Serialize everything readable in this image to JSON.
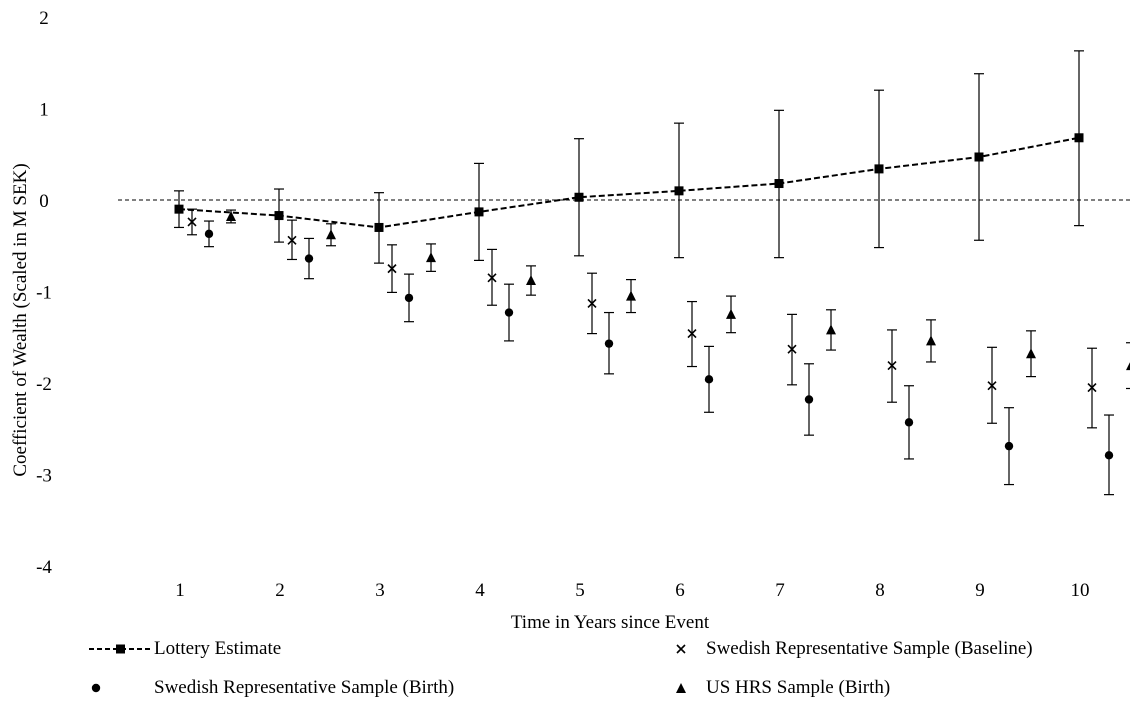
{
  "chart_data": {
    "type": "scatter",
    "xlabel": "Time in Years since Event",
    "ylabel": "Coefficient of Wealth (Scaled in M SEK)",
    "x_categories": [
      "1",
      "2",
      "3",
      "4",
      "5",
      "6",
      "7",
      "8",
      "9",
      "10"
    ],
    "y_ticks": [
      2,
      1,
      0,
      -1,
      -2,
      -3,
      -4
    ],
    "ylim": [
      -4,
      2
    ],
    "zero_line": "dashed",
    "grid": false,
    "legend_placement": "bottom",
    "series": [
      {
        "name": "Lottery Estimate",
        "marker": "square",
        "line": "dashed",
        "values": [
          -0.1,
          -0.17,
          -0.3,
          -0.13,
          0.03,
          0.1,
          0.18,
          0.34,
          0.47,
          0.68
        ],
        "ci_low": [
          -0.3,
          -0.46,
          -0.69,
          -0.66,
          -0.61,
          -0.63,
          -0.63,
          -0.52,
          -0.44,
          -0.28
        ],
        "ci_high": [
          0.1,
          0.12,
          0.08,
          0.4,
          0.67,
          0.84,
          0.98,
          1.2,
          1.38,
          1.63
        ]
      },
      {
        "name": "Swedish Representative Sample (Baseline)",
        "marker": "x",
        "line": "none",
        "values": [
          -0.24,
          -0.44,
          -0.75,
          -0.85,
          -1.13,
          -1.46,
          -1.63,
          -1.81,
          -2.03,
          -2.05
        ],
        "ci_low": [
          -0.38,
          -0.65,
          -1.01,
          -1.15,
          -1.46,
          -1.82,
          -2.02,
          -2.21,
          -2.44,
          -2.49
        ],
        "ci_high": [
          -0.1,
          -0.22,
          -0.49,
          -0.54,
          -0.8,
          -1.11,
          -1.25,
          -1.42,
          -1.61,
          -1.62
        ]
      },
      {
        "name": "Swedish Representative Sample (Birth)",
        "marker": "circle",
        "line": "none",
        "values": [
          -0.37,
          -0.64,
          -1.07,
          -1.23,
          -1.57,
          -1.96,
          -2.18,
          -2.43,
          -2.69,
          -2.79
        ],
        "ci_low": [
          -0.51,
          -0.86,
          -1.33,
          -1.54,
          -1.9,
          -2.32,
          -2.57,
          -2.83,
          -3.11,
          -3.22
        ],
        "ci_high": [
          -0.23,
          -0.42,
          -0.81,
          -0.92,
          -1.23,
          -1.6,
          -1.79,
          -2.03,
          -2.27,
          -2.35
        ]
      },
      {
        "name": "US HRS Sample (Birth)",
        "marker": "triangle",
        "line": "none",
        "values": [
          -0.18,
          -0.38,
          -0.63,
          -0.88,
          -1.05,
          -1.25,
          -1.42,
          -1.54,
          -1.68,
          -1.81
        ],
        "ci_low": [
          -0.25,
          -0.5,
          -0.78,
          -1.04,
          -1.23,
          -1.45,
          -1.64,
          -1.77,
          -1.93,
          -2.06
        ],
        "ci_high": [
          -0.11,
          -0.26,
          -0.48,
          -0.72,
          -0.87,
          -1.05,
          -1.2,
          -1.31,
          -1.43,
          -1.56
        ]
      }
    ]
  }
}
